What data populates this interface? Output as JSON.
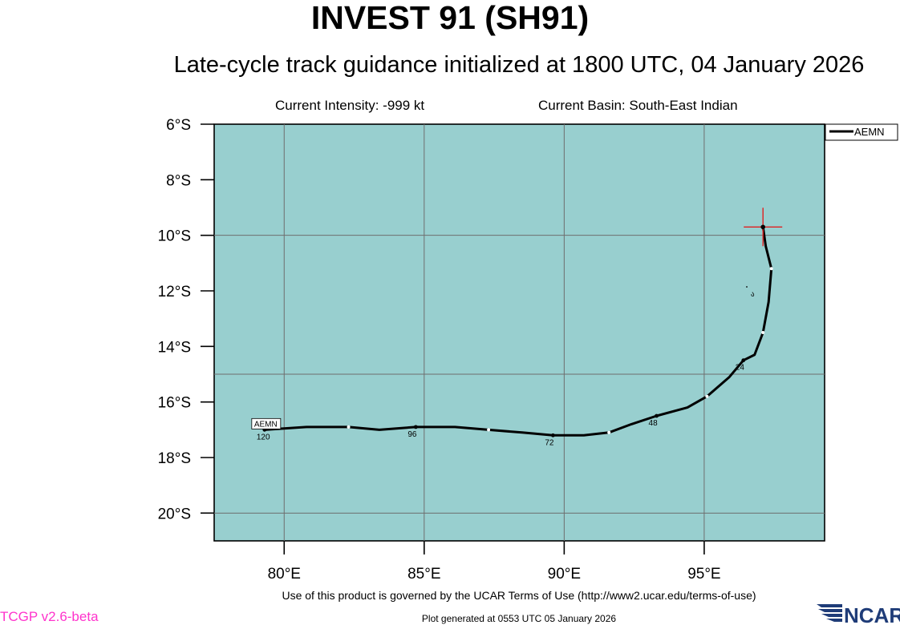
{
  "header": {
    "title": "INVEST 91 (SH91)",
    "subtitle": "Late-cycle track guidance initialized at 1800 UTC, 04 January 2026",
    "intensity": "Current Intensity: -999 kt",
    "basin": "Current Basin: South-East Indian"
  },
  "map": {
    "lon_range": [
      77.5,
      99.3
    ],
    "lat_range": [
      -21.0,
      -6.0
    ],
    "lon_ticks": [
      80,
      85,
      90,
      95
    ],
    "lon_tick_labels": [
      "80°E",
      "85°E",
      "90°E",
      "95°E"
    ],
    "lat_ticks": [
      -6,
      -8,
      -10,
      -12,
      -14,
      -16,
      -18,
      -20
    ],
    "lat_tick_labels": [
      "6°S",
      "8°S",
      "10°S",
      "12°S",
      "14°S",
      "16°S",
      "18°S",
      "20°S"
    ],
    "gridlines_lon": [
      80,
      85,
      90,
      95
    ],
    "gridlines_lat": [
      -10,
      -15,
      -20
    ],
    "ocean_color": "#98cfcf",
    "grid_color": "#6e6e6e",
    "current_position": {
      "lon": 97.1,
      "lat": -9.7
    },
    "marker_color": "#e02020",
    "legend_placement": "top-right"
  },
  "chart_data": {
    "type": "line",
    "series": [
      {
        "name": "AEMN",
        "lon": [
          97.1,
          97.2,
          97.4,
          97.3,
          97.1,
          96.8,
          96.4,
          95.9,
          95.1,
          94.4,
          93.3,
          92.4,
          91.6,
          90.7,
          89.6,
          88.5,
          87.3,
          86.1,
          84.7,
          83.4,
          82.3,
          80.8,
          79.3
        ],
        "lat": [
          -9.7,
          -10.4,
          -11.2,
          -12.4,
          -13.5,
          -14.3,
          -14.5,
          -15.1,
          -15.8,
          -16.2,
          -16.5,
          -16.8,
          -17.1,
          -17.2,
          -17.2,
          -17.1,
          -17.0,
          -16.9,
          -16.9,
          -17.0,
          -16.9,
          -16.9,
          -17.0
        ],
        "tau_labels": [
          {
            "text": "24",
            "lon": 96.4,
            "lat": -14.5
          },
          {
            "text": "48",
            "lon": 93.3,
            "lat": -16.5
          },
          {
            "text": "72",
            "lon": 89.6,
            "lat": -17.2
          },
          {
            "text": "96",
            "lon": 84.7,
            "lat": -16.9
          },
          {
            "text": "120",
            "lon": 79.3,
            "lat": -17.0
          }
        ],
        "end_label": "AEMN",
        "color": "#000000"
      }
    ],
    "xlim": [
      77.5,
      99.3
    ],
    "ylim": [
      -21.0,
      -6.0
    ],
    "legend": [
      "AEMN"
    ],
    "grid": true
  },
  "stray_glyph": "ა",
  "footer": {
    "terms": "Use of this product is governed by the UCAR Terms of Use (http://www2.ucar.edu/terms-of-use)",
    "generated": "Plot generated at 0553 UTC   05 January 2026",
    "version": "TCGP v2.6-beta",
    "logo_text": "NCAR"
  }
}
